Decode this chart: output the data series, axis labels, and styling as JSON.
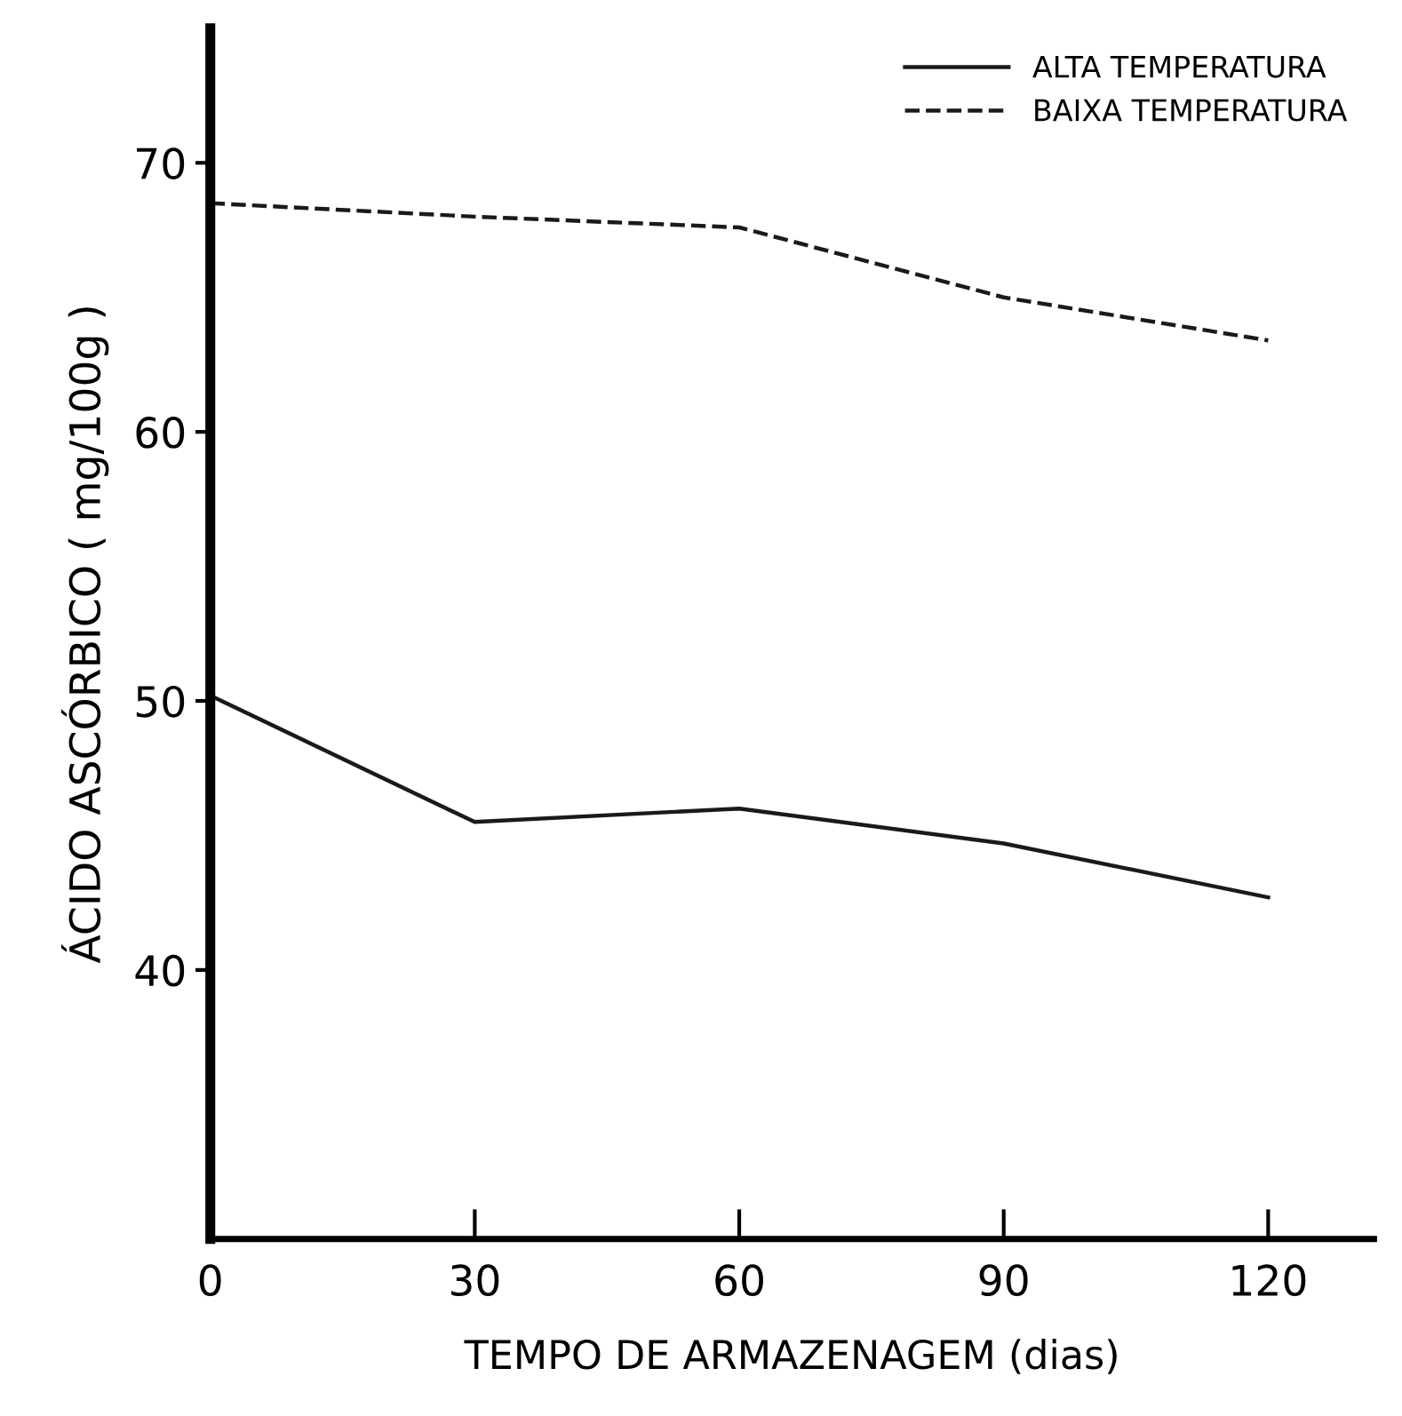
{
  "chart_data": {
    "type": "line",
    "xlabel": "TEMPO DE ARMAZENAGEM (dias)",
    "ylabel": "ÁCIDO ASCÓRBICO ( mg/100g )",
    "x": [
      0,
      30,
      60,
      90,
      120
    ],
    "series": [
      {
        "name": "ALTA TEMPERATURA",
        "color": "#1a1a1a",
        "line_style": "solid",
        "values": [
          50.2,
          45.5,
          46.0,
          44.7,
          42.7
        ]
      },
      {
        "name": "BAIXA TEMPERATURA",
        "color": "#1a1a1a",
        "line_style": "dashed",
        "values": [
          68.5,
          68.0,
          67.6,
          65.0,
          63.4
        ]
      }
    ],
    "xlim": [
      0,
      132
    ],
    "ylim": [
      30,
      75
    ],
    "xticks": [
      0,
      30,
      60,
      90,
      120
    ],
    "yticks": [
      40,
      50,
      60,
      70
    ],
    "grid": false,
    "legend": "top right",
    "marker": "none"
  }
}
